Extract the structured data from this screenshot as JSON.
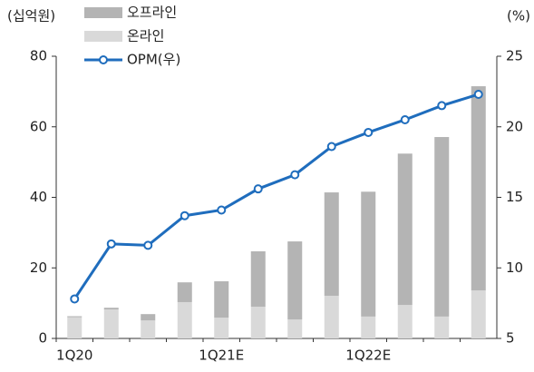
{
  "chart_data": {
    "type": "bar-line",
    "y_label": "(십억원)",
    "y2_label": "(%)",
    "categories": [
      "1Q20",
      null,
      null,
      null,
      "1Q21E",
      null,
      null,
      null,
      "1Q22E",
      null,
      null,
      null
    ],
    "series": [
      {
        "name": "오프라인",
        "color": "#b4b4b4",
        "stack": true,
        "values": [
          0.3,
          0.5,
          1.8,
          5.6,
          10.3,
          15.7,
          22.1,
          29.3,
          35.4,
          42.9,
          50.9,
          57.9
        ]
      },
      {
        "name": "온라인",
        "color": "#d9d9d9",
        "stack": true,
        "values": [
          6,
          8.2,
          5.1,
          10.3,
          5.9,
          9.0,
          5.4,
          12.1,
          6.2,
          9.5,
          6.2,
          13.6
        ]
      },
      {
        "name": "OPM(우)",
        "color": "#1f6dbd",
        "axis": "y2",
        "values": [
          7.8,
          11.7,
          11.6,
          13.7,
          14.1,
          15.6,
          16.6,
          18.6,
          19.6,
          20.5,
          21.5,
          22.3
        ]
      }
    ],
    "ylim": [
      0,
      80
    ],
    "yticks": [
      0,
      20,
      40,
      60,
      80
    ],
    "y2lim": [
      5,
      25
    ],
    "y2ticks": [
      5,
      10,
      15,
      20,
      25
    ]
  }
}
